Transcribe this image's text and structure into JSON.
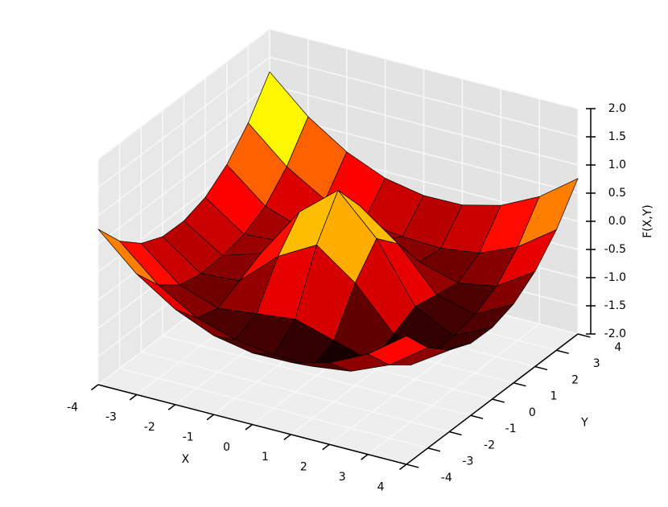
{
  "chart_data": {
    "type": "surface",
    "xlabel": "X",
    "ylabel": "Y",
    "zlabel": "F(X,Y)",
    "x": [
      -4,
      -3,
      -2,
      -1,
      0,
      1,
      2,
      3,
      4
    ],
    "y": [
      -4,
      -3,
      -2,
      -1,
      0,
      1,
      2,
      3,
      4
    ],
    "z": [
      [
        0.76,
        0.14,
        -0.31,
        -0.6,
        -0.73,
        -0.72,
        -0.55,
        -0.22,
        0.28
      ],
      [
        0.26,
        -0.34,
        -0.75,
        -0.96,
        -1.05,
        -1.08,
        -0.99,
        -0.7,
        -0.22
      ],
      [
        -0.07,
        -0.63,
        -0.87,
        -0.79,
        -0.71,
        -0.91,
        -1.11,
        -0.99,
        -0.55
      ],
      [
        -0.24,
        -0.72,
        -0.67,
        -0.06,
        0.32,
        -0.18,
        -0.91,
        -1.08,
        -0.72
      ],
      [
        -0.25,
        -0.69,
        -0.47,
        0.44,
        1.0,
        0.32,
        -0.71,
        -1.05,
        -0.73
      ],
      [
        -0.12,
        -0.6,
        -0.55,
        0.06,
        0.44,
        -0.06,
        -0.79,
        -0.96,
        -0.6
      ],
      [
        0.17,
        -0.39,
        -0.63,
        -0.55,
        -0.47,
        -0.67,
        -0.87,
        -0.75,
        -0.31
      ],
      [
        0.62,
        0.02,
        -0.39,
        -0.6,
        -0.69,
        -0.72,
        -0.63,
        -0.34,
        0.14
      ],
      [
        1.24,
        0.62,
        0.17,
        -0.12,
        -0.25,
        -0.24,
        -0.07,
        0.26,
        0.76
      ]
    ],
    "xlim": [
      -4,
      4
    ],
    "ylim": [
      -4,
      4
    ],
    "zlim": [
      -2,
      2
    ],
    "xticks": [
      -4,
      -3,
      -2,
      -1,
      0,
      1,
      2,
      3,
      4
    ],
    "yticks": [
      -4,
      -3,
      -2,
      -1,
      0,
      1,
      2,
      3,
      4
    ],
    "zticks": [
      {
        "value": -2,
        "label": "-2.0"
      },
      {
        "value": -1.5,
        "label": "-1.5"
      },
      {
        "value": -1,
        "label": "-1.0"
      },
      {
        "value": -0.5,
        "label": "-0.5"
      },
      {
        "value": 0,
        "label": "0.0"
      },
      {
        "value": 0.5,
        "label": "0.5"
      },
      {
        "value": 1,
        "label": "1.0"
      },
      {
        "value": 1.5,
        "label": "1.5"
      },
      {
        "value": 2,
        "label": "2.0"
      }
    ],
    "colormap": "hot",
    "grid": true
  }
}
